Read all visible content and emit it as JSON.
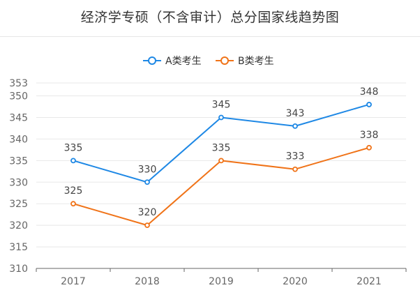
{
  "chart_data": {
    "type": "line",
    "title": "经济学专硕（不含审计）总分国家线趋势图",
    "categories": [
      "2017",
      "2018",
      "2019",
      "2020",
      "2021"
    ],
    "series": [
      {
        "name": "A类考生",
        "color": "#1E88E5",
        "values": [
          335,
          330,
          345,
          343,
          348
        ]
      },
      {
        "name": "B类考生",
        "color": "#F07318",
        "values": [
          325,
          320,
          335,
          333,
          338
        ]
      }
    ],
    "yticks": [
      310,
      315,
      320,
      325,
      330,
      335,
      340,
      345,
      350,
      353
    ],
    "ylim": [
      310,
      353
    ],
    "legend_position": "top-center",
    "grid": true,
    "xlabel": "",
    "ylabel": ""
  }
}
